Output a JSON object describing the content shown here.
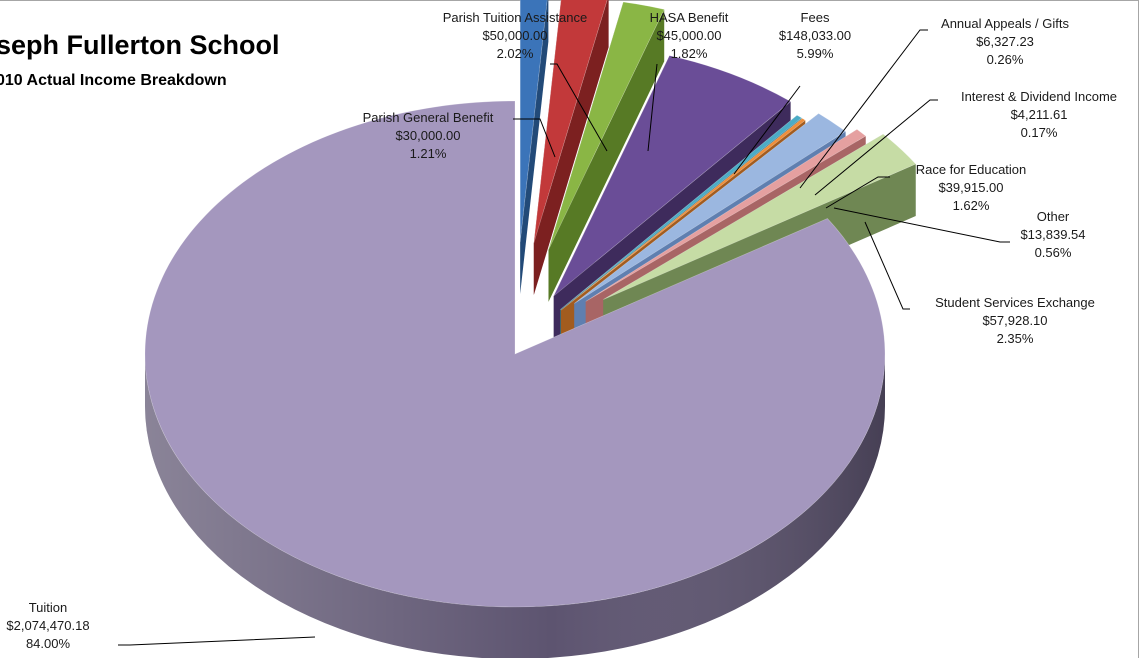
{
  "chart_data": {
    "type": "pie",
    "title": "seph Fullerton School",
    "subtitle": "010 Actual Income Breakdown",
    "slices": [
      {
        "key": "tuition",
        "label": "Tuition",
        "amount": "$2,074,470.18",
        "percent": "84.00%",
        "value": 2074470.18,
        "color": "#a497be",
        "side": "#5d5470"
      },
      {
        "key": "parish-general",
        "label": "Parish General Benefit",
        "amount": "$30,000.00",
        "percent": "1.21%",
        "value": 30000.0,
        "color": "#3b74b9",
        "side": "#224a78"
      },
      {
        "key": "parish-tuition",
        "label": "Parish Tuition Assistance",
        "amount": "$50,000.00",
        "percent": "2.02%",
        "value": 50000.0,
        "color": "#c2393a",
        "side": "#7c2020"
      },
      {
        "key": "hasa",
        "label": "HASA Benefit",
        "amount": "$45,000.00",
        "percent": "1.82%",
        "value": 45000.0,
        "color": "#8ab645",
        "side": "#577a25"
      },
      {
        "key": "fees",
        "label": "Fees",
        "amount": "$148,033.00",
        "percent": "5.99%",
        "value": 148033.0,
        "color": "#6a4d97",
        "side": "#3e2b5c"
      },
      {
        "key": "annual-appeals",
        "label": "Annual Appeals / Gifts",
        "amount": "$6,327.23",
        "percent": "0.26%",
        "value": 6327.23,
        "color": "#4bacc6",
        "side": "#2d7183"
      },
      {
        "key": "interest",
        "label": "Interest & Dividend Income",
        "amount": "$4,211.61",
        "percent": "0.17%",
        "value": 4211.61,
        "color": "#ef8e3a",
        "side": "#a25c1f"
      },
      {
        "key": "race",
        "label": "Race for Education",
        "amount": "$39,915.00",
        "percent": "1.62%",
        "value": 39915.0,
        "color": "#9bb7e0",
        "side": "#5f7fb0"
      },
      {
        "key": "other",
        "label": "Other",
        "amount": "$13,839.54",
        "percent": "0.56%",
        "value": 13839.54,
        "color": "#e5a0a0",
        "side": "#a86565"
      },
      {
        "key": "student-services",
        "label": "Student Services Exchange",
        "amount": "$57,928.10",
        "percent": "2.35%",
        "value": 57928.1,
        "color": "#c6dca5",
        "side": "#6f8753"
      }
    ]
  }
}
